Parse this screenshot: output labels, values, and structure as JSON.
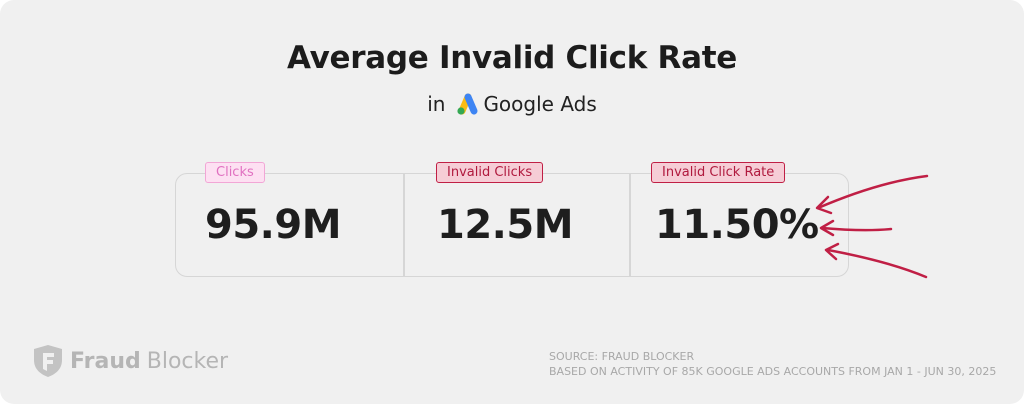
{
  "header": {
    "title": "Average Invalid Click Rate",
    "subtitle_prefix": "in",
    "platform_name": "Google Ads"
  },
  "stats": [
    {
      "label": "Clicks",
      "value": "95.9M"
    },
    {
      "label": "Invalid Clicks",
      "value": "12.5M"
    },
    {
      "label": "Invalid Click Rate",
      "value": "11.50%"
    }
  ],
  "brand": {
    "name_bold": "Fraud",
    "name_rest": "Blocker",
    "icon": "fraud-blocker-shield-icon"
  },
  "footer": {
    "source_line": "SOURCE: FRAUD BLOCKER",
    "basis_line": "BASED ON ACTIVITY OF 85K GOOGLE ADS ACCOUNTS FROM JAN 1 - JUN 30, 2025"
  },
  "colors": {
    "background": "#f0f0f0",
    "accent_red": "#c01f45",
    "accent_pink": "#f2a6d6",
    "text_dark": "#1e1e1e",
    "muted": "#b5b5b5"
  }
}
